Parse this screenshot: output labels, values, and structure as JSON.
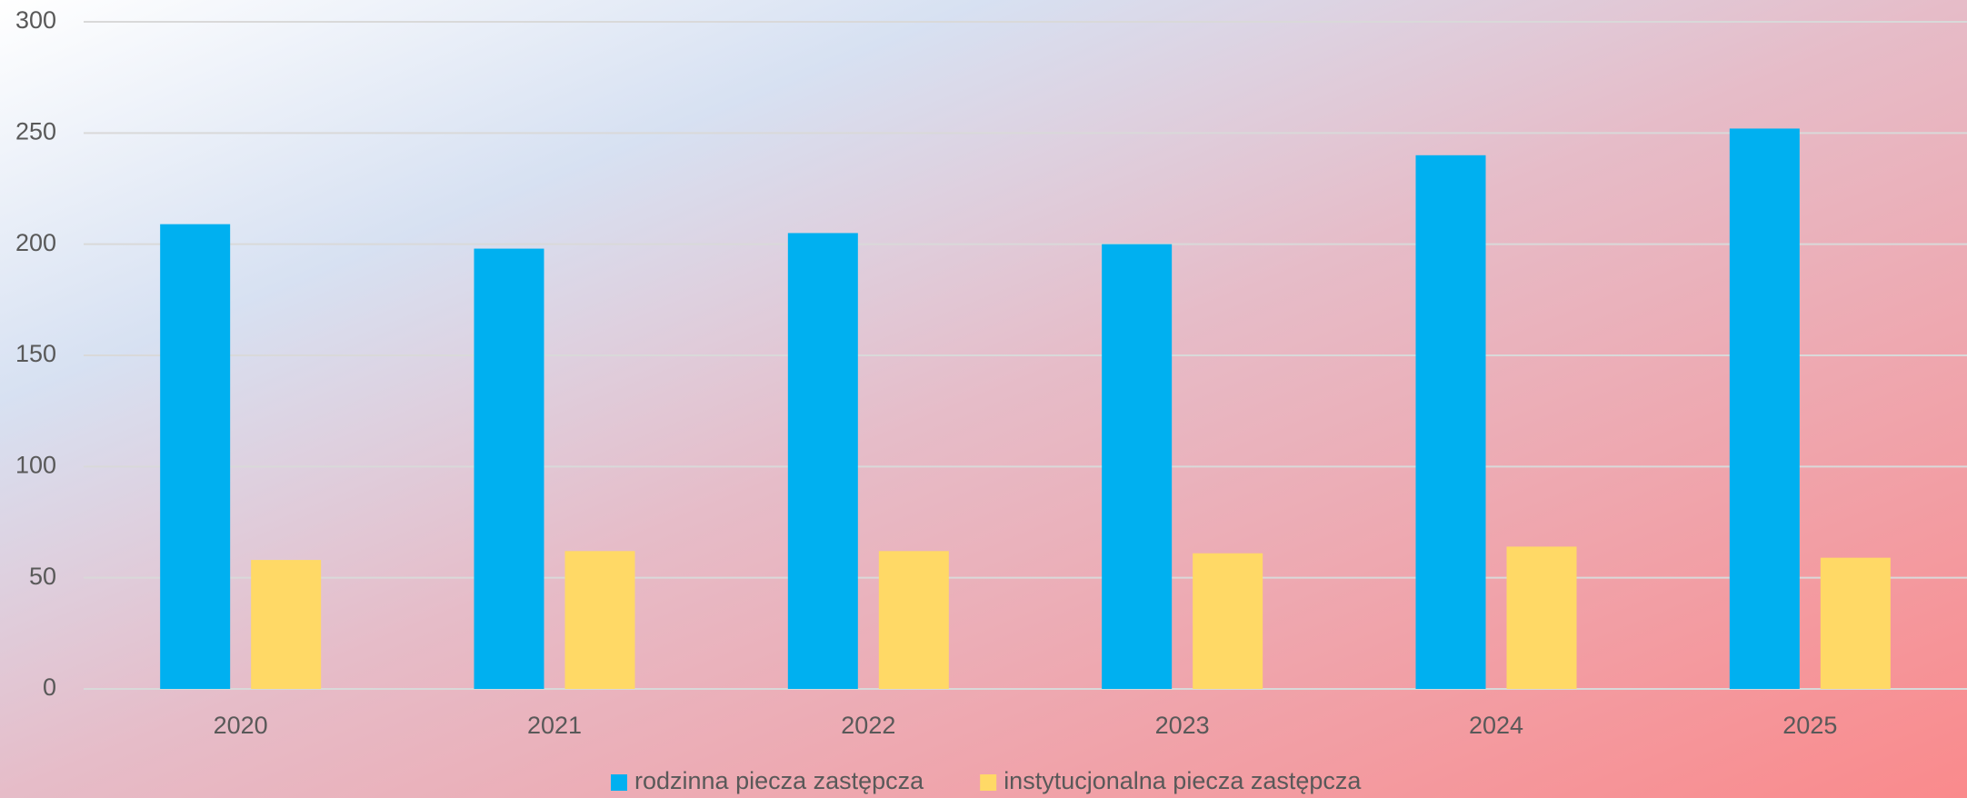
{
  "chart_data": {
    "type": "bar",
    "categories": [
      "2020",
      "2021",
      "2022",
      "2023",
      "2024",
      "2025"
    ],
    "series": [
      {
        "name": "rodzinna piecza zastępcza",
        "color": "#00b0f0",
        "values": [
          209,
          198,
          205,
          200,
          240,
          252
        ]
      },
      {
        "name": "instytucjonalna piecza zastępcza",
        "color": "#ffd966",
        "values": [
          58,
          62,
          62,
          61,
          64,
          59
        ]
      }
    ],
    "ylim": [
      0,
      300
    ],
    "yticks": [
      0,
      50,
      100,
      150,
      200,
      250,
      300
    ],
    "grid": true,
    "legend": "bottom"
  }
}
